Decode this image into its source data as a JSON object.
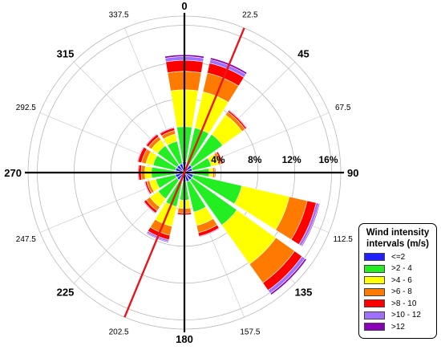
{
  "chart_data": {
    "type": "wind-rose",
    "unit": "%",
    "radial_ticks": [
      "4%",
      "8%",
      "12%",
      "16%"
    ],
    "radial_values": [
      4,
      8,
      12,
      16
    ],
    "max_radius_value": 17,
    "directions_major": [
      "0",
      "45",
      "90",
      "135",
      "180",
      "225",
      "270",
      "315"
    ],
    "directions_minor": [
      "22.5",
      "67.5",
      "112.5",
      "157.5",
      "202.5",
      "247.5",
      "292.5",
      "337.5"
    ],
    "sector_angles": [
      0,
      22.5,
      45,
      67.5,
      90,
      112.5,
      135,
      157.5,
      180,
      202.5,
      225,
      247.5,
      270,
      292.5,
      315,
      337.5
    ],
    "mean_direction_line": {
      "angles": [
        22.5,
        202.5
      ],
      "color": "#e8161b"
    },
    "legend": {
      "title": "Wind intensity intervals (m/s)",
      "position": "bottom-right",
      "classes": [
        "<=2",
        ">2 - 4",
        ">4 - 6",
        ">6 - 8",
        ">8 - 10",
        ">10 - 12",
        ">12"
      ],
      "colors": [
        "#1f1fff",
        "#22ee22",
        "#ffff00",
        "#ff7a00",
        "#ff0000",
        "#a070ff",
        "#8a00b8"
      ]
    },
    "series": [
      {
        "name": "<=2",
        "values": [
          1.2,
          1.0,
          1.0,
          0.9,
          0.8,
          1.0,
          1.0,
          1.0,
          1.0,
          1.0,
          1.0,
          1.0,
          1.0,
          1.0,
          1.0,
          1.0
        ]
      },
      {
        "name": ">2 - 4",
        "values": [
          3.8,
          4.0,
          4.1,
          2.1,
          1.9,
          5.4,
          6.0,
          3.4,
          2.0,
          2.8,
          2.5,
          2.2,
          2.6,
          2.5,
          2.6,
          2.5
        ]
      },
      {
        "name": ">4 - 6",
        "values": [
          4.0,
          4.0,
          2.6,
          0.8,
          0.4,
          5.3,
          5.2,
          1.5,
          0.9,
          2.2,
          1.1,
          0.7,
          0.7,
          0.8,
          0.8,
          0.8
        ]
      },
      {
        "name": ">6 - 8",
        "values": [
          2.0,
          2.1,
          0.4,
          0.3,
          0.2,
          2.0,
          2.5,
          0.8,
          0.5,
          1.0,
          0.5,
          0.3,
          0.4,
          0.5,
          0.4,
          0.4
        ]
      },
      {
        "name": ">8 - 10",
        "values": [
          1.2,
          1.1,
          0.2,
          0.2,
          0.1,
          1.0,
          1.0,
          0.4,
          0.2,
          0.5,
          0.3,
          0.2,
          0.3,
          0.4,
          0.3,
          0.3
        ]
      },
      {
        "name": ">10 - 12",
        "values": [
          0.4,
          0.4,
          0.1,
          0.05,
          0.05,
          0.3,
          0.4,
          0.1,
          0.05,
          0.2,
          0.1,
          0.1,
          0.1,
          0.1,
          0.1,
          0.1
        ]
      },
      {
        "name": ">12",
        "values": [
          0.2,
          0.2,
          0.05,
          0.05,
          0.0,
          0.1,
          0.2,
          0.05,
          0.0,
          0.1,
          0.05,
          0.05,
          0.05,
          0.05,
          0.05,
          0.05
        ]
      }
    ],
    "grid": true
  }
}
